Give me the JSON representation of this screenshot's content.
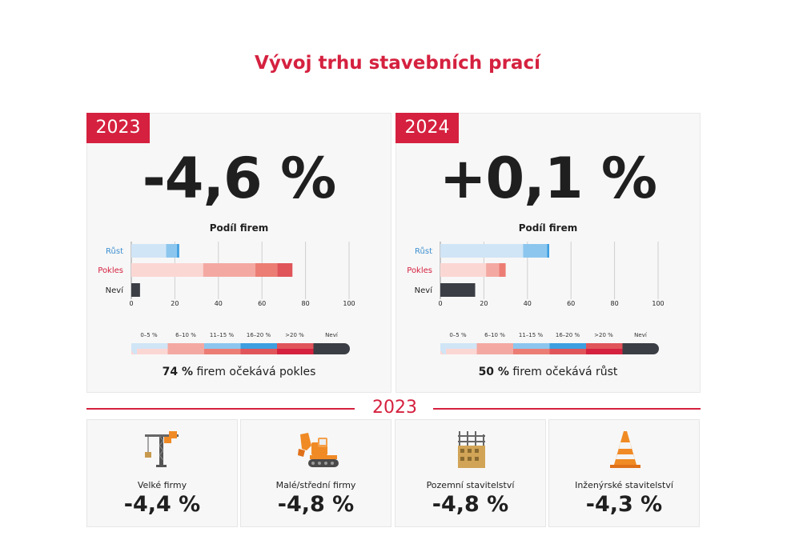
{
  "title": "Vývoj trhu stavebních prací",
  "panels": [
    {
      "year": "2023",
      "change": "-4,6 %",
      "chart_title": "Podíl firem",
      "summary_value": "74 %",
      "summary_text": "firem očekává pokles",
      "chart_data": {
        "type": "bar",
        "orientation": "horizontal",
        "stacked": true,
        "categories": [
          "Růst",
          "Pokles",
          "Neví"
        ],
        "xlim": [
          0,
          100
        ],
        "xticks": [
          "0",
          "20",
          "40",
          "60",
          "80",
          "100"
        ],
        "rust": [
          16,
          5,
          1
        ],
        "pokles": [
          33,
          24,
          10,
          7
        ],
        "nevi": [
          4
        ]
      }
    },
    {
      "year": "2024",
      "change": "+0,1 %",
      "chart_title": "Podíl firem",
      "summary_value": "50 %",
      "summary_text": "firem očekává růst",
      "chart_data": {
        "type": "bar",
        "orientation": "horizontal",
        "stacked": true,
        "categories": [
          "Růst",
          "Pokles",
          "Neví"
        ],
        "xlim": [
          0,
          100
        ],
        "xticks": [
          "0",
          "20",
          "40",
          "60",
          "80",
          "100"
        ],
        "rust": [
          38,
          11,
          1
        ],
        "pokles": [
          21,
          6,
          3
        ],
        "nevi": [
          16
        ]
      }
    }
  ],
  "scale_labels": [
    "0–5 %",
    "6–10 %",
    "11–15 %",
    "16–20 %",
    ">20 %",
    "Neví"
  ],
  "colors": {
    "accent": "#d5213f",
    "rust": [
      "#d0e5f6",
      "#8cc6ee",
      "#3d9ee0"
    ],
    "pokles": [
      "#fbd7d4",
      "#f3a9a2",
      "#ec7d74",
      "#e0555a"
    ],
    "nevi": "#3b3f45"
  },
  "section_year": "2023",
  "cards": [
    {
      "icon": "tower-crane-icon",
      "label": "Velké firmy",
      "value": "-4,4 %"
    },
    {
      "icon": "excavator-icon",
      "label": "Malé/střední firmy",
      "value": "-4,8 %"
    },
    {
      "icon": "building-construction-icon",
      "label": "Pozemní stavitelství",
      "value": "-4,8 %"
    },
    {
      "icon": "traffic-cone-icon",
      "label": "Inženýrské stavitelství",
      "value": "-4,3 %"
    }
  ]
}
